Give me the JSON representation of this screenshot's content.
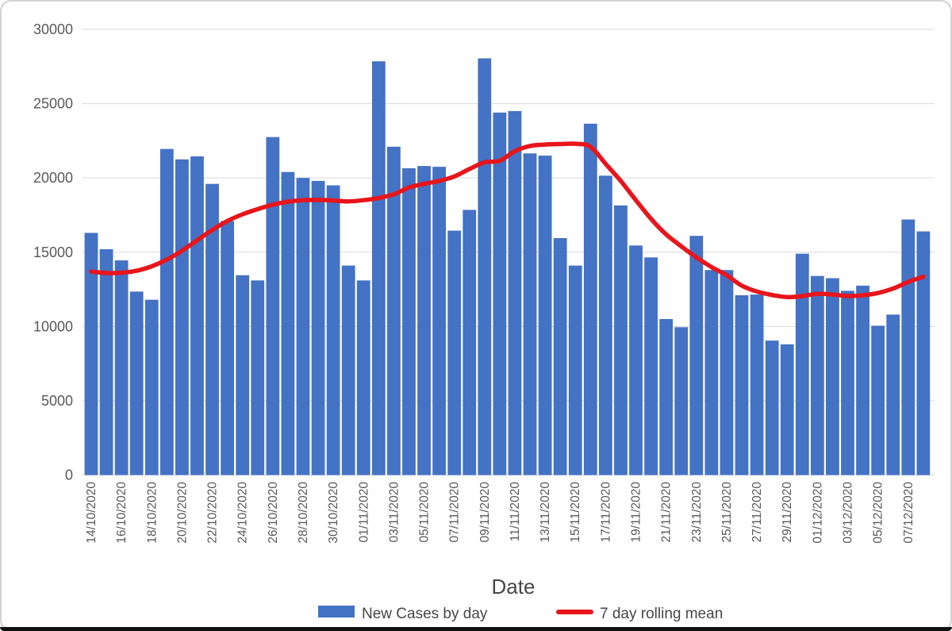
{
  "chart_data": {
    "type": "bar",
    "title": "",
    "xlabel": "Date",
    "ylabel": "",
    "ylim": [
      0,
      30000
    ],
    "y_ticks": [
      0,
      5000,
      10000,
      15000,
      20000,
      25000,
      30000
    ],
    "grid": true,
    "legend_position": "bottom",
    "x_tick_label_every": 2,
    "categories": [
      "14/10/2020",
      "15/10/2020",
      "16/10/2020",
      "17/10/2020",
      "18/10/2020",
      "19/10/2020",
      "20/10/2020",
      "21/10/2020",
      "22/10/2020",
      "23/10/2020",
      "24/10/2020",
      "25/10/2020",
      "26/10/2020",
      "27/10/2020",
      "28/10/2020",
      "29/10/2020",
      "30/10/2020",
      "31/10/2020",
      "01/11/2020",
      "02/11/2020",
      "03/11/2020",
      "04/11/2020",
      "05/11/2020",
      "06/11/2020",
      "07/11/2020",
      "08/11/2020",
      "09/11/2020",
      "10/11/2020",
      "11/11/2020",
      "12/11/2020",
      "13/11/2020",
      "14/11/2020",
      "15/11/2020",
      "16/11/2020",
      "17/11/2020",
      "18/11/2020",
      "19/11/2020",
      "20/11/2020",
      "21/11/2020",
      "22/11/2020",
      "23/11/2020",
      "24/11/2020",
      "25/11/2020",
      "26/11/2020",
      "27/11/2020",
      "28/11/2020",
      "29/11/2020",
      "30/11/2020",
      "01/12/2020",
      "02/12/2020",
      "03/12/2020",
      "04/12/2020",
      "05/12/2020",
      "06/12/2020",
      "07/12/2020",
      "08/12/2020"
    ],
    "series": [
      {
        "name": "New Cases by day",
        "type": "bar",
        "color": "#4472C4",
        "values": [
          16300,
          15200,
          14450,
          12350,
          11800,
          21950,
          21250,
          21450,
          19600,
          17100,
          13450,
          13100,
          22750,
          20400,
          20000,
          19800,
          19500,
          14100,
          13100,
          27850,
          22100,
          20650,
          20800,
          20750,
          16450,
          17850,
          28050,
          24400,
          24500,
          21650,
          21500,
          15950,
          14100,
          23650,
          20150,
          18150,
          15450,
          14650,
          10500,
          9950,
          16100,
          13800,
          13800,
          12100,
          12150,
          9050,
          8800,
          14900,
          13400,
          13250,
          12400,
          12750,
          10050,
          10800,
          17200,
          16400
        ]
      },
      {
        "name": "7 day rolling mean",
        "type": "line",
        "color": "#e8151b",
        "values": [
          13700,
          13600,
          13620,
          13750,
          14050,
          14500,
          15100,
          15800,
          16500,
          17100,
          17550,
          17900,
          18200,
          18400,
          18500,
          18520,
          18480,
          18420,
          18500,
          18650,
          18900,
          19350,
          19600,
          19800,
          20100,
          20600,
          21050,
          21150,
          21800,
          22150,
          22250,
          22280,
          22300,
          22100,
          20950,
          19800,
          18500,
          17250,
          16200,
          15400,
          14650,
          14000,
          13450,
          12750,
          12350,
          12120,
          11980,
          12050,
          12200,
          12150,
          12050,
          12100,
          12250,
          12550,
          13000,
          13350
        ]
      }
    ]
  },
  "axis": {
    "x_title": "Date"
  },
  "legend": {
    "items": [
      {
        "label": "New Cases by day",
        "swatch": "bar-swatch",
        "color": "#4472C4"
      },
      {
        "label": "7 day rolling mean",
        "swatch": "line-swatch",
        "color": "#e8151b"
      }
    ]
  },
  "colors": {
    "bar": "#4472C4",
    "line": "#e8151b",
    "gridline": "#d9d9d9",
    "tick_text": "#595959",
    "title_text": "#474747",
    "frame_border": "#d2d2d2",
    "bottom_edge": "#101010"
  }
}
